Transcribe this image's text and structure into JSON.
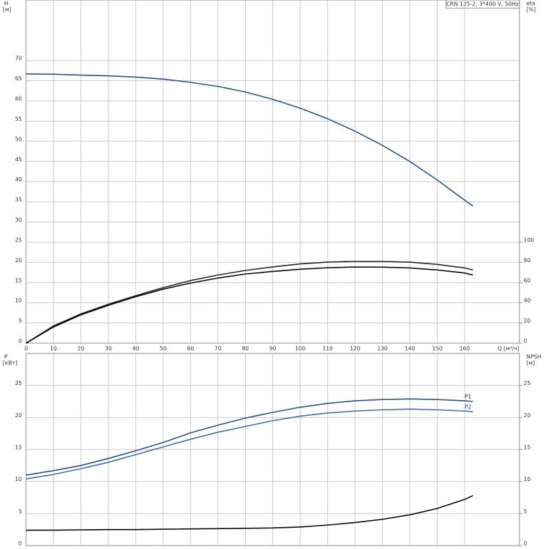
{
  "chart_data": [
    {
      "type": "line",
      "title": "CRN 125-2, 3*400 V, 50Hz",
      "y_label": "H",
      "y_unit": "[м]",
      "y2_label": "eta",
      "y2_unit": "[%]",
      "x_label": "Q [м³/ч]",
      "x": [
        0,
        10,
        20,
        30,
        40,
        50,
        60,
        70,
        80,
        90,
        100,
        110,
        120,
        130,
        140,
        150,
        160,
        163
      ],
      "xlim": [
        0,
        180
      ],
      "xticks": [
        0,
        10,
        20,
        30,
        40,
        50,
        60,
        70,
        80,
        90,
        100,
        110,
        120,
        130,
        140,
        150,
        160
      ],
      "ylim": [
        0,
        85
      ],
      "yticks": [
        0,
        5,
        10,
        15,
        20,
        25,
        30,
        35,
        40,
        45,
        50,
        55,
        60,
        65,
        70
      ],
      "y2lim": [
        0,
        340
      ],
      "y2ticks": [
        0,
        20,
        40,
        60,
        80,
        100
      ],
      "grid": true,
      "series": [
        {
          "color": "#1f4e8c",
          "values": [
            66.7,
            66.6,
            66.4,
            66.2,
            65.9,
            65.4,
            64.6,
            63.6,
            62.2,
            60.4,
            58.2,
            55.6,
            52.5,
            49,
            45,
            40.4,
            35.4,
            34
          ]
        },
        {
          "color": "#222222",
          "axis": "y2",
          "values": [
            0,
            17,
            29,
            38.5,
            47,
            55,
            62,
            67.5,
            72,
            75.5,
            78.5,
            80.3,
            81,
            81,
            80.2,
            78,
            74.5,
            72.5
          ]
        },
        {
          "color": "#000000",
          "axis": "y2",
          "values": [
            0,
            16,
            28,
            37.5,
            46,
            53.5,
            59.5,
            64.5,
            68.5,
            71,
            73.2,
            74.7,
            75.4,
            75.3,
            74.5,
            72.5,
            69.5,
            67.5
          ]
        }
      ]
    },
    {
      "type": "line",
      "y_label": "P",
      "y_unit": "[кВт]",
      "y2_label": "NPSH",
      "y2_unit": "[м]",
      "x": [
        0,
        10,
        20,
        30,
        40,
        50,
        60,
        70,
        80,
        90,
        100,
        110,
        120,
        130,
        140,
        150,
        160,
        163
      ],
      "xlim": [
        0,
        180
      ],
      "ylim": [
        0,
        30
      ],
      "yticks": [
        0,
        5,
        10,
        15,
        20,
        25
      ],
      "y2lim": [
        0,
        30
      ],
      "y2ticks": [
        0,
        5,
        10,
        15,
        20,
        25
      ],
      "grid": true,
      "series": [
        {
          "name": "P1",
          "color": "#1f4e8c",
          "values": [
            11,
            11.7,
            12.5,
            13.6,
            14.8,
            16.1,
            17.6,
            18.8,
            19.9,
            20.8,
            21.6,
            22.2,
            22.6,
            22.8,
            22.9,
            22.8,
            22.6,
            22.5
          ]
        },
        {
          "name": "P2",
          "color": "#3a6aa8",
          "values": [
            10.4,
            11.1,
            12,
            13,
            14.2,
            15.4,
            16.6,
            17.7,
            18.6,
            19.5,
            20.2,
            20.7,
            21,
            21.2,
            21.3,
            21.2,
            21,
            20.9
          ]
        },
        {
          "color": "#000000",
          "axis": "y2",
          "values": [
            2.4,
            2.4,
            2.45,
            2.5,
            2.5,
            2.55,
            2.6,
            2.65,
            2.7,
            2.75,
            2.9,
            3.2,
            3.6,
            4.1,
            4.8,
            5.8,
            7.2,
            7.8
          ]
        }
      ]
    }
  ]
}
